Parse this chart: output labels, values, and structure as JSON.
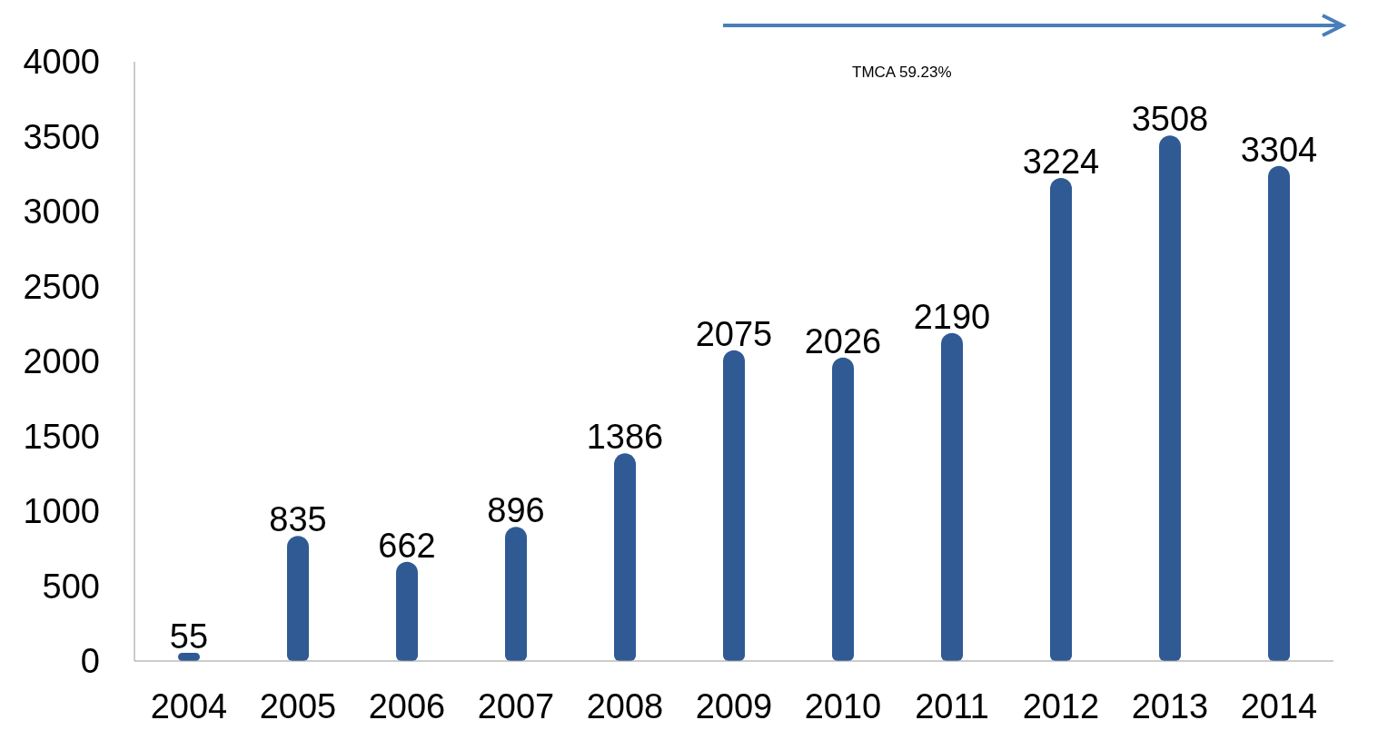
{
  "chart_data": {
    "type": "bar",
    "categories": [
      "2004",
      "2005",
      "2006",
      "2007",
      "2008",
      "2009",
      "2010",
      "2011",
      "2012",
      "2013",
      "2014"
    ],
    "values": [
      55,
      835,
      662,
      896,
      1386,
      2075,
      2026,
      2190,
      3224,
      3508,
      3304
    ],
    "color": "#2f5a94",
    "ylim": [
      0,
      4000
    ],
    "yticks": [
      0,
      500,
      1000,
      1500,
      2000,
      2500,
      3000,
      3500,
      4000
    ],
    "grid": false,
    "legend": false,
    "data_labels": true,
    "annotations": [
      "TMCA 59.23%"
    ]
  }
}
